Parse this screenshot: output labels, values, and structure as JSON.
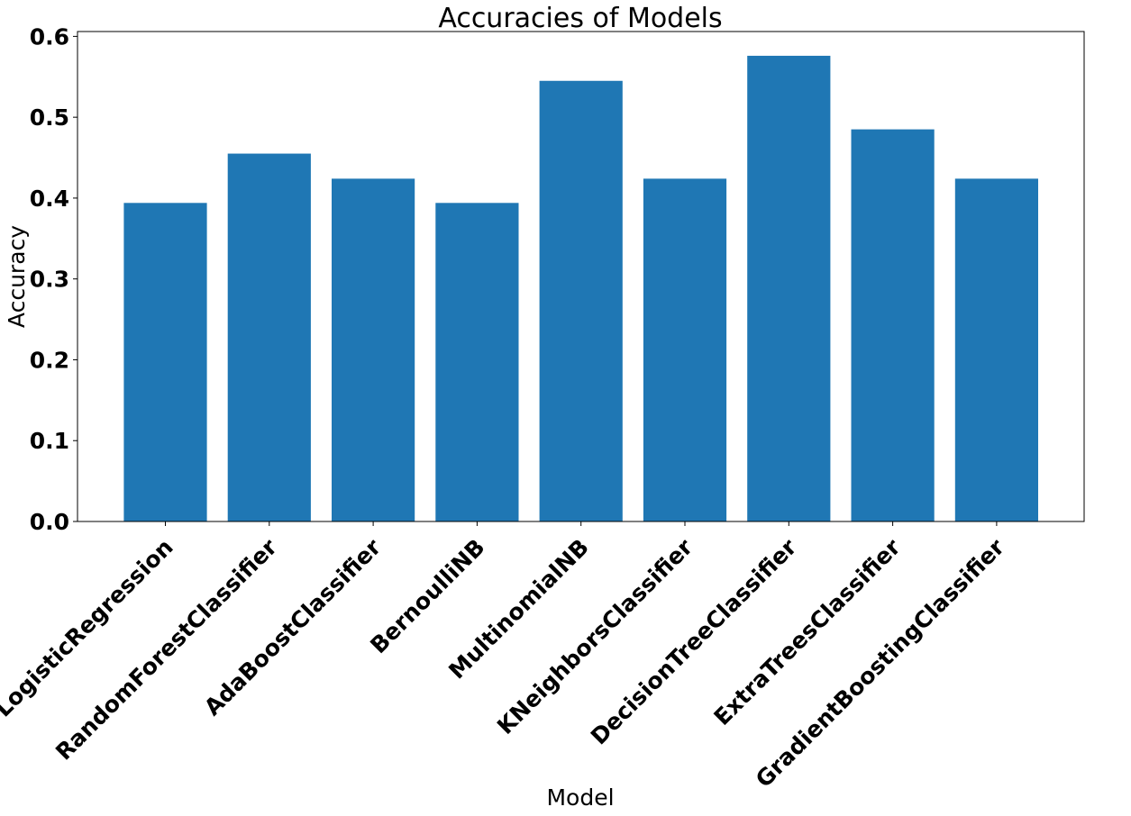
{
  "chart_data": {
    "type": "bar",
    "title": "Accuracies of Models",
    "xlabel": "Model",
    "ylabel": "Accuracy",
    "categories": [
      "LogisticRegression",
      "RandomForestClassifier",
      "AdaBoostClassifier",
      "BernoulliNB",
      "MultinomialNB",
      "KNeighborsClassifier",
      "DecisionTreeClassifier",
      "ExtraTreesClassifier",
      "GradientBoostingClassifier"
    ],
    "values": [
      0.394,
      0.455,
      0.424,
      0.394,
      0.545,
      0.424,
      0.576,
      0.485,
      0.424
    ],
    "ylim": [
      0,
      0.606
    ],
    "yticks": [
      "0.0",
      "0.1",
      "0.2",
      "0.3",
      "0.4",
      "0.5",
      "0.6"
    ],
    "bar_color": "#1f77b4",
    "grid": false,
    "legend": "none"
  }
}
